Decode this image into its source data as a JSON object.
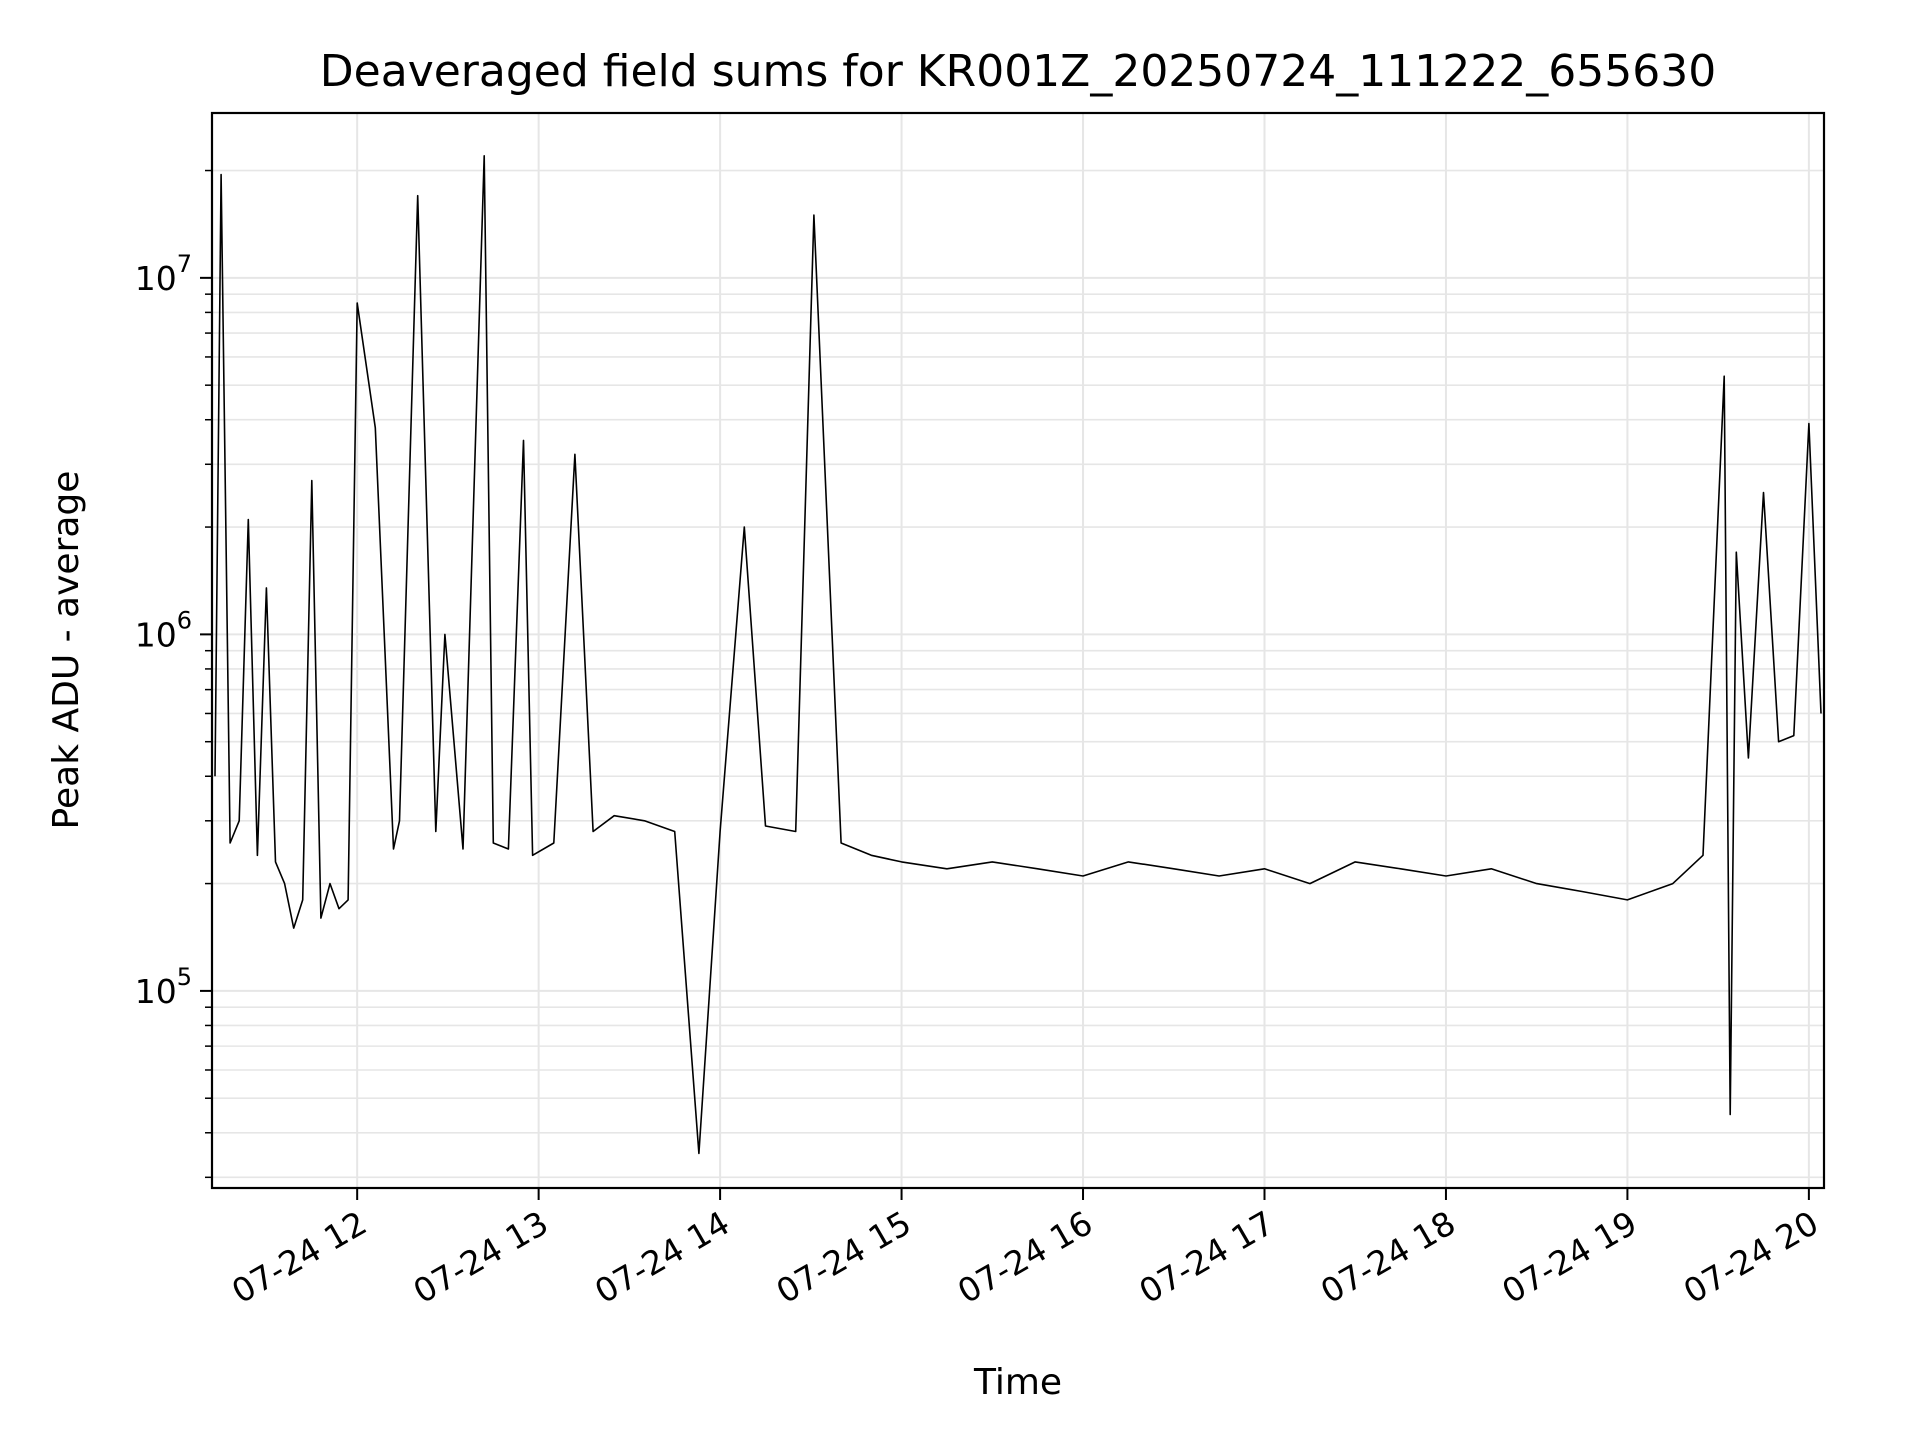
{
  "chart_data": {
    "type": "line",
    "title": "Deaveraged field sums for KR001Z_20250724_111222_655630",
    "xlabel": "Time",
    "ylabel": "Peak ADU - average",
    "y_scale": "log",
    "grid": true,
    "grid_minor": true,
    "line_color": "#000000",
    "grid_color": "#e6e6e6",
    "x_range": [
      "07-24 11:12",
      "07-24 20:05"
    ],
    "y_range": [
      28000,
      29000000
    ],
    "x_ticks": [
      {
        "label": "07-24 12",
        "time": "07-24 12:00"
      },
      {
        "label": "07-24 13",
        "time": "07-24 13:00"
      },
      {
        "label": "07-24 14",
        "time": "07-24 14:00"
      },
      {
        "label": "07-24 15",
        "time": "07-24 15:00"
      },
      {
        "label": "07-24 16",
        "time": "07-24 16:00"
      },
      {
        "label": "07-24 17",
        "time": "07-24 17:00"
      },
      {
        "label": "07-24 18",
        "time": "07-24 18:00"
      },
      {
        "label": "07-24 19",
        "time": "07-24 19:00"
      },
      {
        "label": "07-24 20",
        "time": "07-24 20:00"
      }
    ],
    "y_ticks": [
      {
        "base": "10",
        "exp": "5",
        "value": 100000
      },
      {
        "base": "10",
        "exp": "6",
        "value": 1000000
      },
      {
        "base": "10",
        "exp": "7",
        "value": 10000000
      }
    ],
    "series": [
      {
        "x": [
          "07-24 11:13",
          "07-24 11:15",
          "07-24 11:18",
          "07-24 11:21",
          "07-24 11:24",
          "07-24 11:27",
          "07-24 11:30",
          "07-24 11:33",
          "07-24 11:36",
          "07-24 11:39",
          "07-24 11:42",
          "07-24 11:45",
          "07-24 11:48",
          "07-24 11:51",
          "07-24 11:54",
          "07-24 11:57",
          "07-24 12:00",
          "07-24 12:06",
          "07-24 12:12",
          "07-24 12:14",
          "07-24 12:20",
          "07-24 12:26",
          "07-24 12:29",
          "07-24 12:35",
          "07-24 12:42",
          "07-24 12:45",
          "07-24 12:50",
          "07-24 12:55",
          "07-24 12:58",
          "07-24 13:05",
          "07-24 13:12",
          "07-24 13:18",
          "07-24 13:25",
          "07-24 13:35",
          "07-24 13:45",
          "07-24 13:53",
          "07-24 14:00",
          "07-24 14:08",
          "07-24 14:15",
          "07-24 14:25",
          "07-24 14:31",
          "07-24 14:40",
          "07-24 14:50",
          "07-24 15:00",
          "07-24 15:15",
          "07-24 15:30",
          "07-24 15:45",
          "07-24 16:00",
          "07-24 16:15",
          "07-24 16:30",
          "07-24 16:45",
          "07-24 17:00",
          "07-24 17:15",
          "07-24 17:30",
          "07-24 17:45",
          "07-24 18:00",
          "07-24 18:15",
          "07-24 18:30",
          "07-24 18:45",
          "07-24 19:00",
          "07-24 19:15",
          "07-24 19:25",
          "07-24 19:32",
          "07-24 19:34",
          "07-24 19:36",
          "07-24 19:40",
          "07-24 19:45",
          "07-24 19:50",
          "07-24 19:55",
          "07-24 20:00",
          "07-24 20:04"
        ],
        "y": [
          400000,
          19500000,
          260000,
          300000,
          2100000,
          240000,
          1350000,
          230000,
          200000,
          150000,
          180000,
          2700000,
          160000,
          200000,
          170000,
          180000,
          8500000,
          3800000,
          250000,
          300000,
          17000000,
          280000,
          1000000,
          250000,
          22000000,
          260000,
          250000,
          3500000,
          240000,
          260000,
          3200000,
          280000,
          310000,
          300000,
          280000,
          35000,
          280000,
          2000000,
          290000,
          280000,
          15000000,
          260000,
          240000,
          230000,
          220000,
          230000,
          220000,
          210000,
          230000,
          220000,
          210000,
          220000,
          200000,
          230000,
          220000,
          210000,
          220000,
          200000,
          190000,
          180000,
          200000,
          240000,
          5300000,
          45000,
          1700000,
          450000,
          2500000,
          500000,
          520000,
          3900000,
          600000
        ]
      }
    ]
  }
}
